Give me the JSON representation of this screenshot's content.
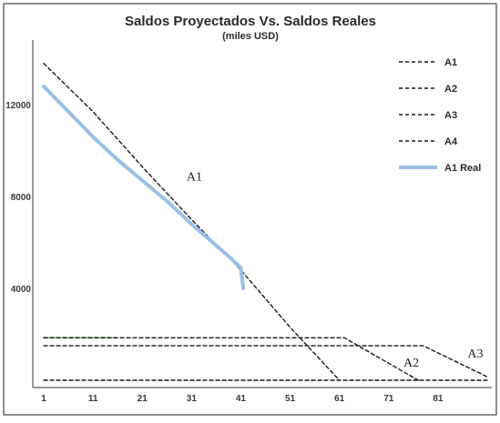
{
  "chart_data": {
    "type": "line",
    "title": "Saldos Proyectados Vs. Saldos Reales",
    "subtitle": "(miles USD)",
    "xlabel": "",
    "ylabel": "",
    "xlim": [
      1,
      91
    ],
    "ylim": [
      0,
      14500
    ],
    "x_ticks": [
      1,
      11,
      21,
      31,
      41,
      51,
      61,
      71,
      81
    ],
    "y_ticks": [
      4000,
      8000,
      12000
    ],
    "y_tick_labels": [
      "4000",
      "8000",
      "12000"
    ],
    "grid": false,
    "legend_position": "right",
    "series": [
      {
        "name": "A1",
        "color": "#1a1a1a",
        "dash": "4,3",
        "points": [
          [
            1,
            13800
          ],
          [
            11,
            11700
          ],
          [
            21,
            9300
          ],
          [
            31,
            7000
          ],
          [
            41,
            4800
          ],
          [
            51,
            2300
          ],
          [
            61,
            0
          ]
        ]
      },
      {
        "name": "A2",
        "color": "#1a1a1a",
        "dash": "4,3",
        "points": [
          [
            1,
            1850
          ],
          [
            62,
            1850
          ],
          [
            77,
            0
          ]
        ]
      },
      {
        "name": "A3",
        "color": "#1a1a1a",
        "dash": "4,3",
        "points": [
          [
            1,
            1500
          ],
          [
            78,
            1500
          ],
          [
            91,
            150
          ]
        ]
      },
      {
        "name": "A4",
        "color": "#1a1a1a",
        "dash": "4,3",
        "points": [
          [
            1,
            0
          ],
          [
            91,
            0
          ]
        ]
      },
      {
        "name": "A1 Real",
        "color": "#9dbfe6",
        "dash": "",
        "points": [
          [
            1,
            12800
          ],
          [
            6,
            11700
          ],
          [
            11,
            10600
          ],
          [
            16,
            9600
          ],
          [
            21,
            8700
          ],
          [
            26,
            7800
          ],
          [
            31,
            6800
          ],
          [
            38,
            5500
          ],
          [
            41,
            4900
          ],
          [
            41.5,
            4000
          ]
        ]
      }
    ],
    "extra_lines": [
      {
        "name": "green-line",
        "color": "#9fd3a4",
        "points": [
          [
            1,
            1850
          ],
          [
            16,
            1850
          ]
        ]
      }
    ],
    "annotations": [
      {
        "text": "A1",
        "x": 30,
        "y": 8700
      },
      {
        "text": "A2",
        "x": 74,
        "y": 600
      },
      {
        "text": "A3",
        "x": 87,
        "y": 1000
      }
    ]
  }
}
